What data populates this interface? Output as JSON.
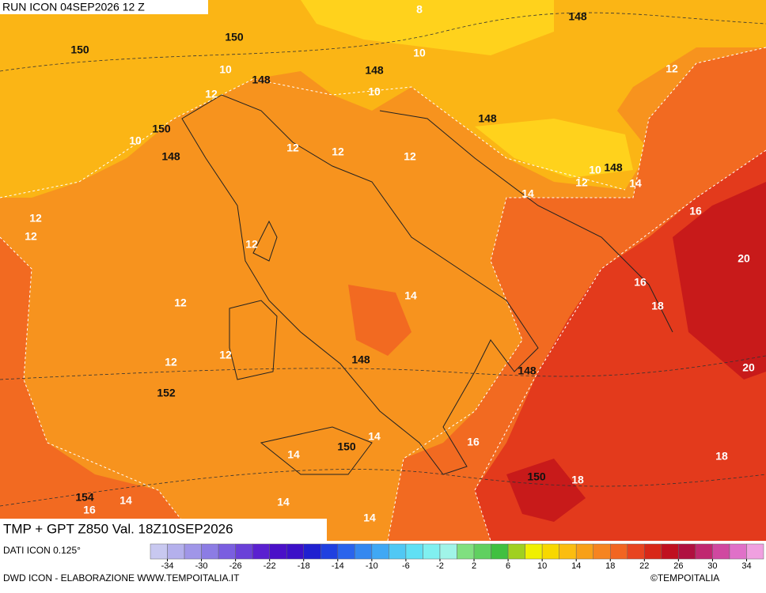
{
  "header": {
    "run": "RUN ICON 04SEP2026 12 Z"
  },
  "footer": {
    "product": "TMP + GPT Z850 Val. 18Z10SEP2026",
    "source": "DATI ICON 0.125°",
    "credit": "DWD ICON - ELABORAZIONE WWW.TEMPOITALIA.IT",
    "brand": "©TEMPOITALIA"
  },
  "legend": {
    "range": [
      -36,
      36
    ],
    "ticks": [
      -34,
      -30,
      -26,
      -22,
      -18,
      -14,
      -10,
      -6,
      -2,
      2,
      6,
      10,
      14,
      18,
      22,
      26,
      30,
      34
    ],
    "colors": [
      "#c8c8f0",
      "#b4b0ec",
      "#a096e8",
      "#8c7ce4",
      "#7a5ee0",
      "#6a40d8",
      "#5a20d0",
      "#4a10c8",
      "#3c10c8",
      "#2020d0",
      "#2040e0",
      "#2a64ec",
      "#3488f0",
      "#40a8f4",
      "#50c8f4",
      "#60e0f4",
      "#80f0f0",
      "#a0f4e8",
      "#80e080",
      "#60d060",
      "#40c040",
      "#a0d020",
      "#f0f000",
      "#f8d800",
      "#fbbd10",
      "#f8a018",
      "#f68420",
      "#f26522",
      "#e84420",
      "#d82818",
      "#c01020",
      "#b01040",
      "#c02870",
      "#d048a0",
      "#e070c8",
      "#f0a0e0"
    ]
  },
  "map": {
    "temperature_labels": [
      8,
      10,
      10,
      12,
      10,
      10,
      12,
      12,
      12,
      12,
      10,
      12,
      14,
      14,
      16,
      12,
      12,
      12,
      20,
      16,
      18,
      14,
      12,
      12,
      12,
      20,
      14,
      16,
      14,
      18,
      18,
      14,
      14,
      16,
      14
    ],
    "height_labels": [
      148,
      150,
      150,
      148,
      148,
      148,
      150,
      148,
      148,
      148,
      148,
      152,
      150,
      150,
      154
    ]
  }
}
